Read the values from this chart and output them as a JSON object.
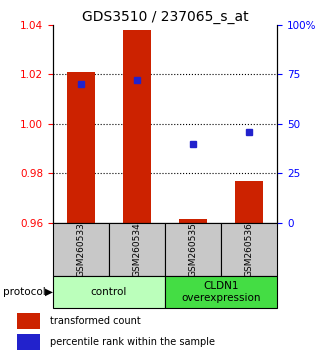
{
  "title": "GDS3510 / 237065_s_at",
  "samples": [
    "GSM260533",
    "GSM260534",
    "GSM260535",
    "GSM260536"
  ],
  "transformed_counts": [
    1.021,
    1.038,
    0.9615,
    0.977
  ],
  "percentile_ranks": [
    70,
    72,
    40,
    46
  ],
  "bar_bottom": 0.96,
  "ylim_left": [
    0.96,
    1.04
  ],
  "ylim_right": [
    0,
    100
  ],
  "yticks_left": [
    0.96,
    0.98,
    1.0,
    1.02,
    1.04
  ],
  "yticks_right": [
    0,
    25,
    50,
    75,
    100
  ],
  "ytick_labels_right": [
    "0",
    "25",
    "50",
    "75",
    "100%"
  ],
  "bar_color": "#cc2200",
  "dot_color": "#2222cc",
  "groups": [
    {
      "label": "control",
      "samples": [
        0,
        1
      ],
      "color": "#bbffbb"
    },
    {
      "label": "CLDN1\noverexpression",
      "samples": [
        2,
        3
      ],
      "color": "#44dd44"
    }
  ],
  "group_row_color": "#c8c8c8",
  "legend_bar_label": "transformed count",
  "legend_dot_label": "percentile rank within the sample",
  "protocol_label": "protocol",
  "background_color": "#ffffff",
  "title_fontsize": 10,
  "tick_fontsize": 7.5,
  "sample_fontsize": 6.5,
  "group_fontsize": 7.5
}
